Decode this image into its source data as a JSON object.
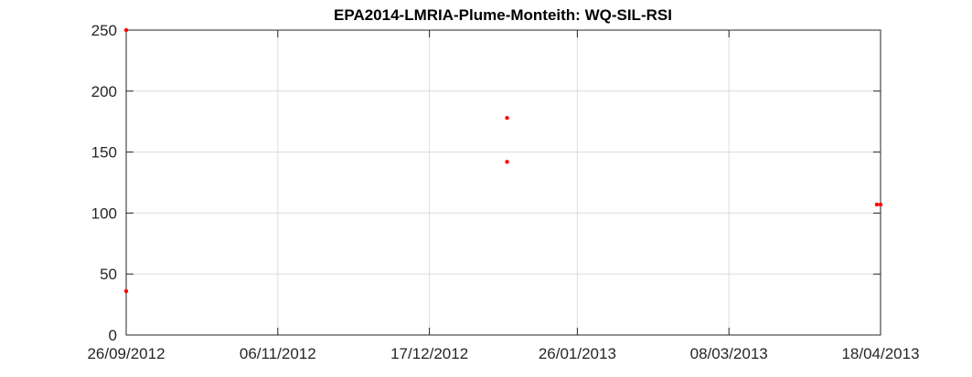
{
  "chart_data": {
    "type": "scatter",
    "title": "EPA2014-LMRIA-Plume-Monteith: WQ-SIL-RSI",
    "xlabel": "",
    "ylabel": "",
    "x_tick_labels": [
      "26/09/2012",
      "06/11/2012",
      "17/12/2012",
      "26/01/2013",
      "08/03/2013",
      "18/04/2013"
    ],
    "x_ticks": [
      "2012-09-26",
      "2012-11-06",
      "2012-12-17",
      "2013-01-26",
      "2013-03-08",
      "2013-04-18"
    ],
    "xlim": [
      "2012-09-26",
      "2013-04-18"
    ],
    "y_ticks": [
      0,
      50,
      100,
      150,
      200,
      250
    ],
    "ylim": [
      0,
      250
    ],
    "grid": true,
    "marker_color": "#ff0000",
    "series": [
      {
        "points": [
          {
            "x": "2012-09-26",
            "y": 250
          },
          {
            "x": "2012-09-26",
            "y": 36
          },
          {
            "x": "2013-01-07",
            "y": 178
          },
          {
            "x": "2013-01-07",
            "y": 142
          },
          {
            "x": "2013-04-17",
            "y": 107
          },
          {
            "x": "2013-04-18",
            "y": 107
          }
        ]
      }
    ]
  }
}
